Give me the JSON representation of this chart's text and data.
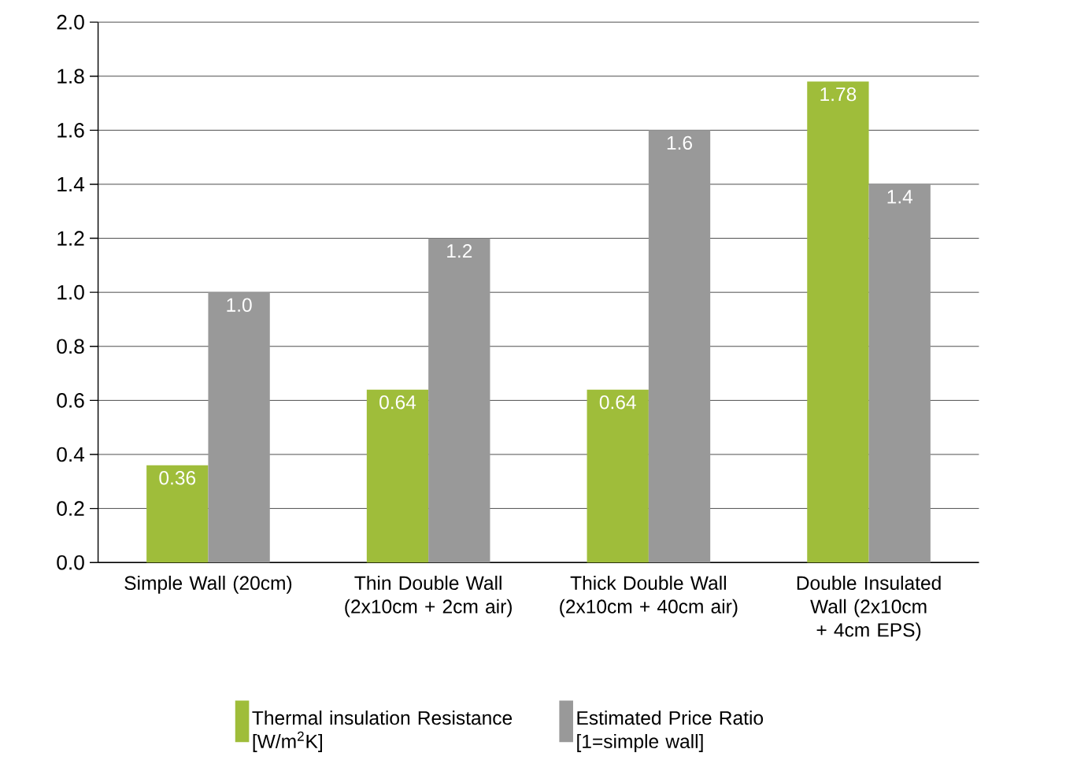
{
  "chart_data": {
    "type": "bar",
    "categories": [
      "Simple Wall (20cm)",
      "Thin Double Wall (2x10cm + 2cm air)",
      "Thick Double Wall (2x10cm + 40cm air)",
      "Double Insulated Wall (2x10cm + 4cm EPS)"
    ],
    "series": [
      {
        "name": "Thermal insulation Resistance [W/m$^{2}$K]",
        "color": "#9fbd3a",
        "values": [
          0.36,
          0.64,
          0.64,
          1.78
        ],
        "value_labels": [
          "0.36",
          "0.64",
          "0.64",
          "1.78"
        ]
      },
      {
        "name": "Estimated Price Ratio [1=simple wall]",
        "color": "#999999",
        "values": [
          1.0,
          1.2,
          1.6,
          1.4
        ],
        "value_labels": [
          "1.0",
          "1.2",
          "1.6",
          "1.4"
        ]
      }
    ],
    "ylim": [
      0,
      2.0
    ],
    "yticks": [
      {
        "value": 0,
        "label": "0.0"
      },
      {
        "value": 0.2,
        "label": "0.2"
      },
      {
        "value": 0.4,
        "label": "0.4"
      },
      {
        "value": 0.6,
        "label": "0.6"
      },
      {
        "value": 0.8,
        "label": "0.8"
      },
      {
        "value": 1.0,
        "label": "1.0"
      },
      {
        "value": 1.2,
        "label": "1.2"
      },
      {
        "value": 1.4,
        "label": "1.4"
      },
      {
        "value": 1.6,
        "label": "1.6"
      },
      {
        "value": 1.8,
        "label": "1.8"
      },
      {
        "value": 2.0,
        "label": "2.0"
      }
    ],
    "grid": "y",
    "legend": "bottom"
  }
}
